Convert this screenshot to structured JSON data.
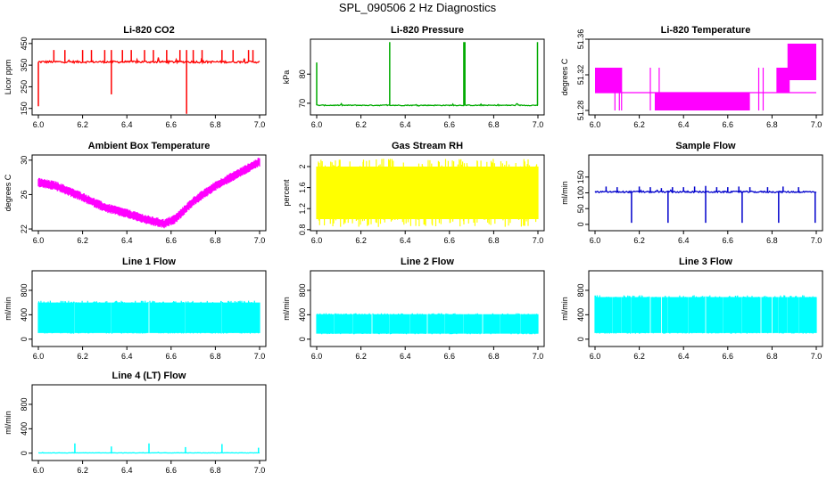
{
  "figure_title": "SPL_090506  2 Hz Diagnostics",
  "chart_data": [
    {
      "type": "line",
      "title": "Li-820 CO2",
      "ylabel": "Licor ppm",
      "color": "#ff0000",
      "x_range": [
        6.0,
        7.0
      ],
      "x_ticks": [
        6.0,
        6.2,
        6.4,
        6.6,
        6.8,
        7.0
      ],
      "ylim": [
        120,
        470
      ],
      "y_ticks": [
        150,
        250,
        350,
        450
      ],
      "shape": "spiky",
      "baseline": 365,
      "noise": 10,
      "spikes": [
        [
          6.07,
          420
        ],
        [
          6.12,
          420
        ],
        [
          6.2,
          420
        ],
        [
          6.24,
          420
        ],
        [
          6.3,
          420
        ],
        [
          6.33,
          420
        ],
        [
          6.38,
          420
        ],
        [
          6.42,
          420
        ],
        [
          6.48,
          420
        ],
        [
          6.52,
          420
        ],
        [
          6.58,
          420
        ],
        [
          6.64,
          420
        ],
        [
          6.67,
          420
        ],
        [
          6.7,
          420
        ],
        [
          6.74,
          420
        ],
        [
          6.83,
          420
        ],
        [
          6.88,
          420
        ],
        [
          6.95,
          420
        ],
        [
          6.97,
          420
        ]
      ],
      "dips": [
        [
          6.0,
          160
        ],
        [
          6.33,
          215
        ],
        [
          6.67,
          125
        ]
      ]
    },
    {
      "type": "line",
      "title": "Li-820 Pressure",
      "ylabel": "kPa",
      "color": "#00aa00",
      "x_range": [
        6.0,
        7.0
      ],
      "x_ticks": [
        6.0,
        6.2,
        6.4,
        6.6,
        6.8,
        7.0
      ],
      "ylim": [
        66,
        92
      ],
      "y_ticks": [
        70,
        80
      ],
      "shape": "spiky",
      "baseline": 69.3,
      "noise": 0.3,
      "spikes": [
        [
          6.0,
          84
        ],
        [
          6.33,
          91
        ],
        [
          6.665,
          91
        ],
        [
          6.67,
          91
        ],
        [
          6.998,
          91
        ]
      ],
      "dips": []
    },
    {
      "type": "line",
      "title": "Li-820 Temperature",
      "ylabel": "degrees C",
      "color": "#ff00ff",
      "x_range": [
        6.0,
        7.0
      ],
      "x_ticks": [
        6.0,
        6.2,
        6.4,
        6.6,
        6.8,
        7.0
      ],
      "ylim": [
        51.275,
        51.36
      ],
      "y_ticks": [
        51.28,
        51.32,
        51.36
      ],
      "shape": "steps",
      "bands": [
        [
          6.0,
          6.12,
          51.3,
          51.328
        ],
        [
          6.27,
          6.7,
          51.28,
          51.3
        ],
        [
          6.82,
          6.88,
          51.3,
          51.328
        ],
        [
          6.87,
          7.0,
          51.314,
          51.355
        ]
      ],
      "baseline": 51.3
    },
    {
      "type": "line",
      "title": "Ambient Box Temperature",
      "ylabel": "degrees C",
      "color": "#ff00ff",
      "x_range": [
        6.0,
        7.0
      ],
      "x_ticks": [
        6.0,
        6.2,
        6.4,
        6.6,
        6.8,
        7.0
      ],
      "ylim": [
        21.8,
        30.6
      ],
      "y_ticks": [
        22,
        26,
        30
      ],
      "shape": "curve",
      "curve": [
        [
          6.0,
          27.4
        ],
        [
          6.08,
          27.0
        ],
        [
          6.2,
          25.7
        ],
        [
          6.3,
          24.5
        ],
        [
          6.4,
          23.8
        ],
        [
          6.5,
          23.0
        ],
        [
          6.57,
          22.6
        ],
        [
          6.62,
          23.2
        ],
        [
          6.7,
          25.2
        ],
        [
          6.8,
          27.0
        ],
        [
          6.9,
          28.4
        ],
        [
          7.0,
          29.8
        ]
      ],
      "noise": 0.3
    },
    {
      "type": "line",
      "title": "Gas Stream RH",
      "ylabel": "percent",
      "color": "#ffff00",
      "x_range": [
        6.0,
        7.0
      ],
      "x_ticks": [
        6.0,
        6.2,
        6.4,
        6.6,
        6.8,
        7.0
      ],
      "ylim": [
        0.78,
        2.22
      ],
      "y_ticks": [
        0.8,
        1.2,
        1.6,
        2.0
      ],
      "shape": "band",
      "top": 2.0,
      "bottom": 1.0,
      "top_max": 2.15,
      "bottom_min": 0.85
    },
    {
      "type": "line",
      "title": "Sample Flow",
      "ylabel": "ml/min",
      "color": "#0000cc",
      "x_range": [
        6.0,
        7.0
      ],
      "x_ticks": [
        6.0,
        6.2,
        6.4,
        6.6,
        6.8,
        7.0
      ],
      "ylim": [
        -20,
        220
      ],
      "y_ticks": [
        0,
        50,
        100,
        150
      ],
      "shape": "spiky",
      "baseline": 103,
      "noise": 5,
      "spikes": [
        [
          6.05,
          120
        ],
        [
          6.1,
          118
        ],
        [
          6.2,
          120
        ],
        [
          6.25,
          118
        ],
        [
          6.3,
          115
        ],
        [
          6.35,
          118
        ],
        [
          6.4,
          118
        ],
        [
          6.45,
          120
        ],
        [
          6.5,
          122
        ],
        [
          6.55,
          118
        ],
        [
          6.6,
          118
        ],
        [
          6.65,
          120
        ],
        [
          6.7,
          118
        ],
        [
          6.78,
          118
        ],
        [
          6.85,
          120
        ],
        [
          6.92,
          118
        ]
      ],
      "dips": [
        [
          6.165,
          5
        ],
        [
          6.33,
          5
        ],
        [
          6.5,
          5
        ],
        [
          6.665,
          5
        ],
        [
          6.83,
          5
        ],
        [
          6.995,
          5
        ]
      ]
    },
    {
      "type": "line",
      "title": "Line 1 Flow",
      "ylabel": "ml/min",
      "color": "#00ffff",
      "x_range": [
        6.0,
        7.0
      ],
      "x_ticks": [
        6.0,
        6.2,
        6.4,
        6.6,
        6.8,
        7.0
      ],
      "ylim": [
        -120,
        1120
      ],
      "y_ticks": [
        0,
        400,
        800
      ],
      "shape": "band",
      "top": 600,
      "bottom": 100,
      "top_max": 630,
      "bottom_min": 90,
      "gaps": [
        6.165,
        6.33,
        6.5,
        6.665,
        6.83
      ]
    },
    {
      "type": "line",
      "title": "Line 2 Flow",
      "ylabel": "ml/min",
      "color": "#00ffff",
      "x_range": [
        6.0,
        7.0
      ],
      "x_ticks": [
        6.0,
        6.2,
        6.4,
        6.6,
        6.8,
        7.0
      ],
      "ylim": [
        -120,
        1120
      ],
      "y_ticks": [
        0,
        400,
        800
      ],
      "shape": "band",
      "top": 410,
      "bottom": 90,
      "top_max": 425,
      "bottom_min": 80,
      "gaps": [
        6.08,
        6.165,
        6.25,
        6.33,
        6.42,
        6.5,
        6.58,
        6.665,
        6.75,
        6.83,
        6.92
      ]
    },
    {
      "type": "line",
      "title": "Line 3 Flow",
      "ylabel": "ml/min",
      "color": "#00ffff",
      "x_range": [
        6.0,
        7.0
      ],
      "x_ticks": [
        6.0,
        6.2,
        6.4,
        6.6,
        6.8,
        7.0
      ],
      "ylim": [
        -120,
        1120
      ],
      "y_ticks": [
        0,
        400,
        800
      ],
      "shape": "band",
      "top": 690,
      "bottom": 100,
      "top_max": 720,
      "bottom_min": 90,
      "gaps": [
        6.08,
        6.12,
        6.165,
        6.25,
        6.3,
        6.33,
        6.42,
        6.5,
        6.58,
        6.665,
        6.75,
        6.8,
        6.83,
        6.87,
        6.92
      ]
    },
    {
      "type": "line",
      "title": "Line 4 (LT) Flow",
      "ylabel": "ml/min",
      "color": "#00ffff",
      "x_range": [
        6.0,
        7.0
      ],
      "x_ticks": [
        6.0,
        6.2,
        6.4,
        6.6,
        6.8,
        7.0
      ],
      "ylim": [
        -120,
        1120
      ],
      "y_ticks": [
        0,
        400,
        800
      ],
      "shape": "spiky",
      "baseline": 5,
      "noise": 5,
      "spikes": [
        [
          6.165,
          160
        ],
        [
          6.33,
          110
        ],
        [
          6.5,
          160
        ],
        [
          6.665,
          100
        ],
        [
          6.83,
          150
        ],
        [
          6.995,
          90
        ]
      ],
      "dips": []
    }
  ]
}
